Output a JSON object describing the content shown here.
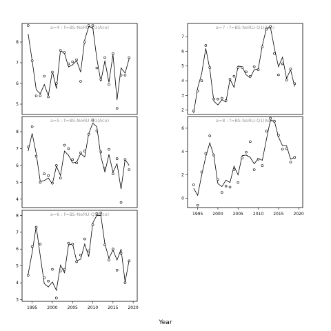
{
  "xlabel": "Year",
  "chart_data": [
    {
      "type": "line",
      "title": "a=4 : f=BS-NoRU-Q1(Aco)",
      "xlim": [
        1992.5,
        2021
      ],
      "ylim": [
        4.5,
        8.9
      ],
      "yticks": [
        5,
        6,
        7,
        8
      ],
      "x_ticks_shown": false,
      "years": [
        1994,
        1995,
        1996,
        1997,
        1998,
        1999,
        2000,
        2001,
        2002,
        2003,
        2004,
        2005,
        2006,
        2007,
        2008,
        2009,
        2010,
        2011,
        2012,
        2013,
        2014,
        2015,
        2016,
        2017,
        2018,
        2019
      ],
      "series": [
        {
          "role": "line",
          "values": [
            8.4,
            7.1,
            5.7,
            5.5,
            5.95,
            5.4,
            6.6,
            5.75,
            7.6,
            7.45,
            6.8,
            6.9,
            7.1,
            6.55,
            8.1,
            8.75,
            8.7,
            7.2,
            6.1,
            7.1,
            6.05,
            7.4,
            5.2,
            6.75,
            6.5,
            7.2
          ]
        },
        {
          "role": "points",
          "values": [
            8.8,
            7.1,
            5.4,
            5.4,
            6.35,
            5.35,
            6.55,
            6.0,
            7.6,
            7.5,
            6.95,
            7.05,
            7.15,
            6.1,
            8.0,
            8.8,
            8.8,
            6.75,
            6.2,
            7.25,
            5.95,
            7.45,
            4.8,
            6.4,
            6.4,
            7.25
          ]
        }
      ]
    },
    {
      "type": "line",
      "title": "a=7 : f=BS-NoRU-Q1(Aco)",
      "xlim": [
        1992.5,
        2021
      ],
      "ylim": [
        1.7,
        7.9
      ],
      "yticks": [
        2,
        3,
        4,
        5,
        6,
        7
      ],
      "x_ticks_shown": false,
      "years": [
        1994,
        1995,
        1996,
        1997,
        1998,
        1999,
        2000,
        2001,
        2002,
        2003,
        2004,
        2005,
        2006,
        2007,
        2008,
        2009,
        2010,
        2011,
        2012,
        2013,
        2014,
        2015,
        2016,
        2017,
        2018,
        2019
      ],
      "series": [
        {
          "role": "line",
          "values": [
            1.8,
            3.5,
            4.5,
            6.2,
            4.8,
            2.6,
            2.35,
            2.7,
            2.55,
            4.1,
            3.55,
            5.0,
            4.95,
            4.4,
            4.2,
            4.75,
            4.8,
            6.4,
            7.55,
            7.65,
            6.2,
            4.95,
            5.6,
            4.15,
            4.75,
            3.6
          ]
        },
        {
          "role": "points",
          "values": [
            1.95,
            3.3,
            4.0,
            6.4,
            4.9,
            2.75,
            2.75,
            2.8,
            2.65,
            4.1,
            4.3,
            4.9,
            4.9,
            4.6,
            4.3,
            4.95,
            4.75,
            6.3,
            7.5,
            7.7,
            5.85,
            4.4,
            5.15,
            4.05,
            4.8,
            3.8
          ]
        }
      ]
    },
    {
      "type": "line",
      "title": "a=5 : f=BS-NoRU-Q1(Aco)",
      "xlim": [
        1992.5,
        2021
      ],
      "ylim": [
        3.5,
        8.9
      ],
      "yticks": [
        4,
        5,
        6,
        7,
        8
      ],
      "x_ticks_shown": false,
      "years": [
        1994,
        1995,
        1996,
        1997,
        1998,
        1999,
        2000,
        2001,
        2002,
        2003,
        2004,
        2005,
        2006,
        2007,
        2008,
        2009,
        2010,
        2011,
        2012,
        2013,
        2014,
        2015,
        2016,
        2017,
        2018,
        2019
      ],
      "series": [
        {
          "role": "line",
          "values": [
            6.85,
            7.9,
            6.7,
            5.05,
            5.1,
            5.25,
            4.9,
            5.95,
            5.4,
            6.85,
            6.6,
            6.15,
            6.2,
            6.7,
            6.5,
            7.9,
            8.5,
            8.3,
            6.55,
            5.6,
            6.65,
            5.6,
            6.1,
            4.6,
            6.35,
            6.0
          ]
        },
        {
          "role": "points",
          "values": [
            7.1,
            8.3,
            6.55,
            5.0,
            5.5,
            5.4,
            4.95,
            6.0,
            5.25,
            7.2,
            7.0,
            6.35,
            6.15,
            6.75,
            6.85,
            7.85,
            8.7,
            8.05,
            6.8,
            5.85,
            6.95,
            5.5,
            6.4,
            3.8,
            6.35,
            5.75
          ]
        }
      ]
    },
    {
      "type": "line",
      "title": "a=8 : f=BS-NoRU-Q1(Aco)",
      "xlim": [
        1992.5,
        2021
      ],
      "ylim": [
        -0.8,
        7.0
      ],
      "yticks": [
        0,
        2,
        4,
        6
      ],
      "x_ticks": [
        1995,
        2000,
        2005,
        2010,
        2015,
        2020
      ],
      "x_ticks_shown": true,
      "years": [
        1994,
        1995,
        1996,
        1997,
        1998,
        1999,
        2000,
        2001,
        2002,
        2003,
        2004,
        2005,
        2006,
        2007,
        2008,
        2009,
        2010,
        2011,
        2012,
        2013,
        2014,
        2015,
        2016,
        2017,
        2018,
        2019
      ],
      "series": [
        {
          "role": "line",
          "values": [
            0.85,
            0.25,
            2.0,
            3.55,
            4.75,
            3.65,
            1.25,
            1.0,
            1.55,
            1.35,
            2.75,
            2.0,
            3.65,
            3.7,
            3.5,
            2.95,
            3.4,
            3.25,
            5.0,
            6.7,
            6.6,
            5.25,
            4.5,
            4.5,
            3.35,
            3.5
          ]
        },
        {
          "role": "points",
          "values": [
            1.15,
            -0.6,
            2.25,
            3.85,
            5.35,
            3.7,
            1.6,
            0.5,
            1.05,
            0.95,
            2.45,
            1.35,
            3.45,
            3.95,
            4.85,
            2.45,
            3.35,
            2.8,
            5.75,
            6.85,
            6.6,
            5.4,
            4.2,
            4.25,
            3.1,
            3.5
          ]
        }
      ]
    },
    {
      "type": "line",
      "title": "a=6 : f=BS-NoRU-Q1(Aco)",
      "xlim": [
        1992.5,
        2021
      ],
      "ylim": [
        2.9,
        8.3
      ],
      "yticks": [
        3,
        4,
        5,
        6,
        7,
        8
      ],
      "x_ticks": [
        1995,
        2000,
        2005,
        2010,
        2015,
        2020
      ],
      "x_ticks_shown": true,
      "years": [
        1994,
        1995,
        1996,
        1997,
        1998,
        1999,
        2000,
        2001,
        2002,
        2003,
        2004,
        2005,
        2006,
        2007,
        2008,
        2009,
        2010,
        2011,
        2012,
        2013,
        2014,
        2015,
        2016,
        2017,
        2018,
        2019
      ],
      "series": [
        {
          "role": "line",
          "values": [
            4.5,
            5.8,
            7.35,
            5.6,
            3.95,
            3.75,
            4.05,
            3.55,
            5.05,
            4.6,
            6.25,
            6.3,
            5.3,
            5.4,
            6.3,
            5.55,
            7.55,
            8.0,
            8.0,
            6.3,
            5.45,
            5.95,
            5.35,
            6.0,
            4.05,
            5.35
          ]
        },
        {
          "role": "points",
          "values": [
            4.45,
            6.15,
            7.3,
            6.3,
            4.3,
            4.1,
            4.8,
            3.1,
            4.7,
            4.8,
            6.35,
            6.3,
            5.25,
            5.65,
            6.6,
            5.9,
            7.45,
            8.1,
            8.15,
            6.25,
            5.35,
            6.0,
            4.75,
            5.75,
            4.0,
            5.3
          ]
        }
      ]
    }
  ]
}
